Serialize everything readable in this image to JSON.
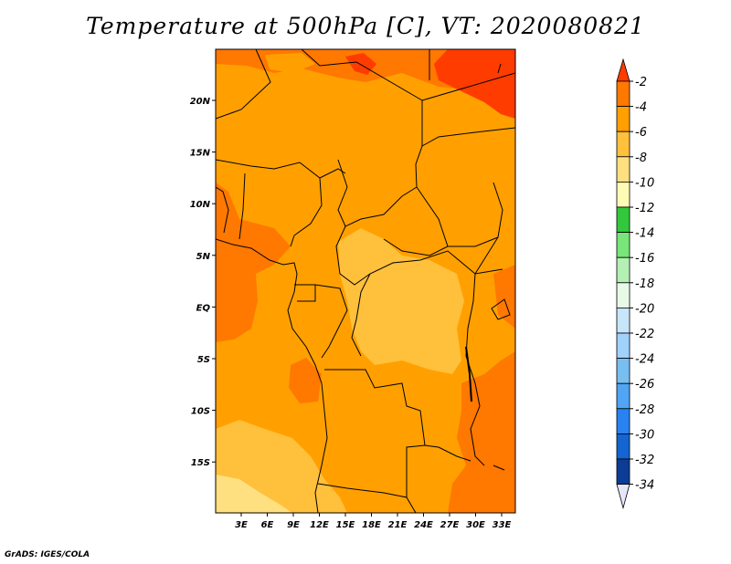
{
  "title": "Temperature at 500hPa [C], VT: 2020080821",
  "credit": "GrADS: IGES/COLA",
  "lon_ticks": [
    "3E",
    "6E",
    "9E",
    "12E",
    "15E",
    "18E",
    "21E",
    "24E",
    "27E",
    "30E",
    "33E"
  ],
  "lat_ticks": [
    "20N",
    "15N",
    "10N",
    "5N",
    "EQ",
    "5S",
    "10S",
    "15S"
  ],
  "colorbar": {
    "labels": [
      "-2",
      "-4",
      "-6",
      "-8",
      "-10",
      "-12",
      "-14",
      "-16",
      "-18",
      "-20",
      "-22",
      "-24",
      "-26",
      "-28",
      "-30",
      "-32",
      "-34"
    ],
    "colors": [
      "#ff3c00",
      "#ff7800",
      "#ffa000",
      "#ffc03c",
      "#ffe080",
      "#fffab4",
      "#32c83c",
      "#78e678",
      "#b4f0b4",
      "#e6fae6",
      "#c8e6fa",
      "#a0d2fa",
      "#78bef0",
      "#50a5f5",
      "#2882f0",
      "#1464d2",
      "#0c3c96",
      "#0a1e64",
      "#e6e6fa"
    ]
  },
  "map_colors": {
    "m4": "#ff7800",
    "m6": "#ffa000",
    "m8": "#ffc03c",
    "m10": "#ffe080",
    "m2": "#ff3c00"
  }
}
